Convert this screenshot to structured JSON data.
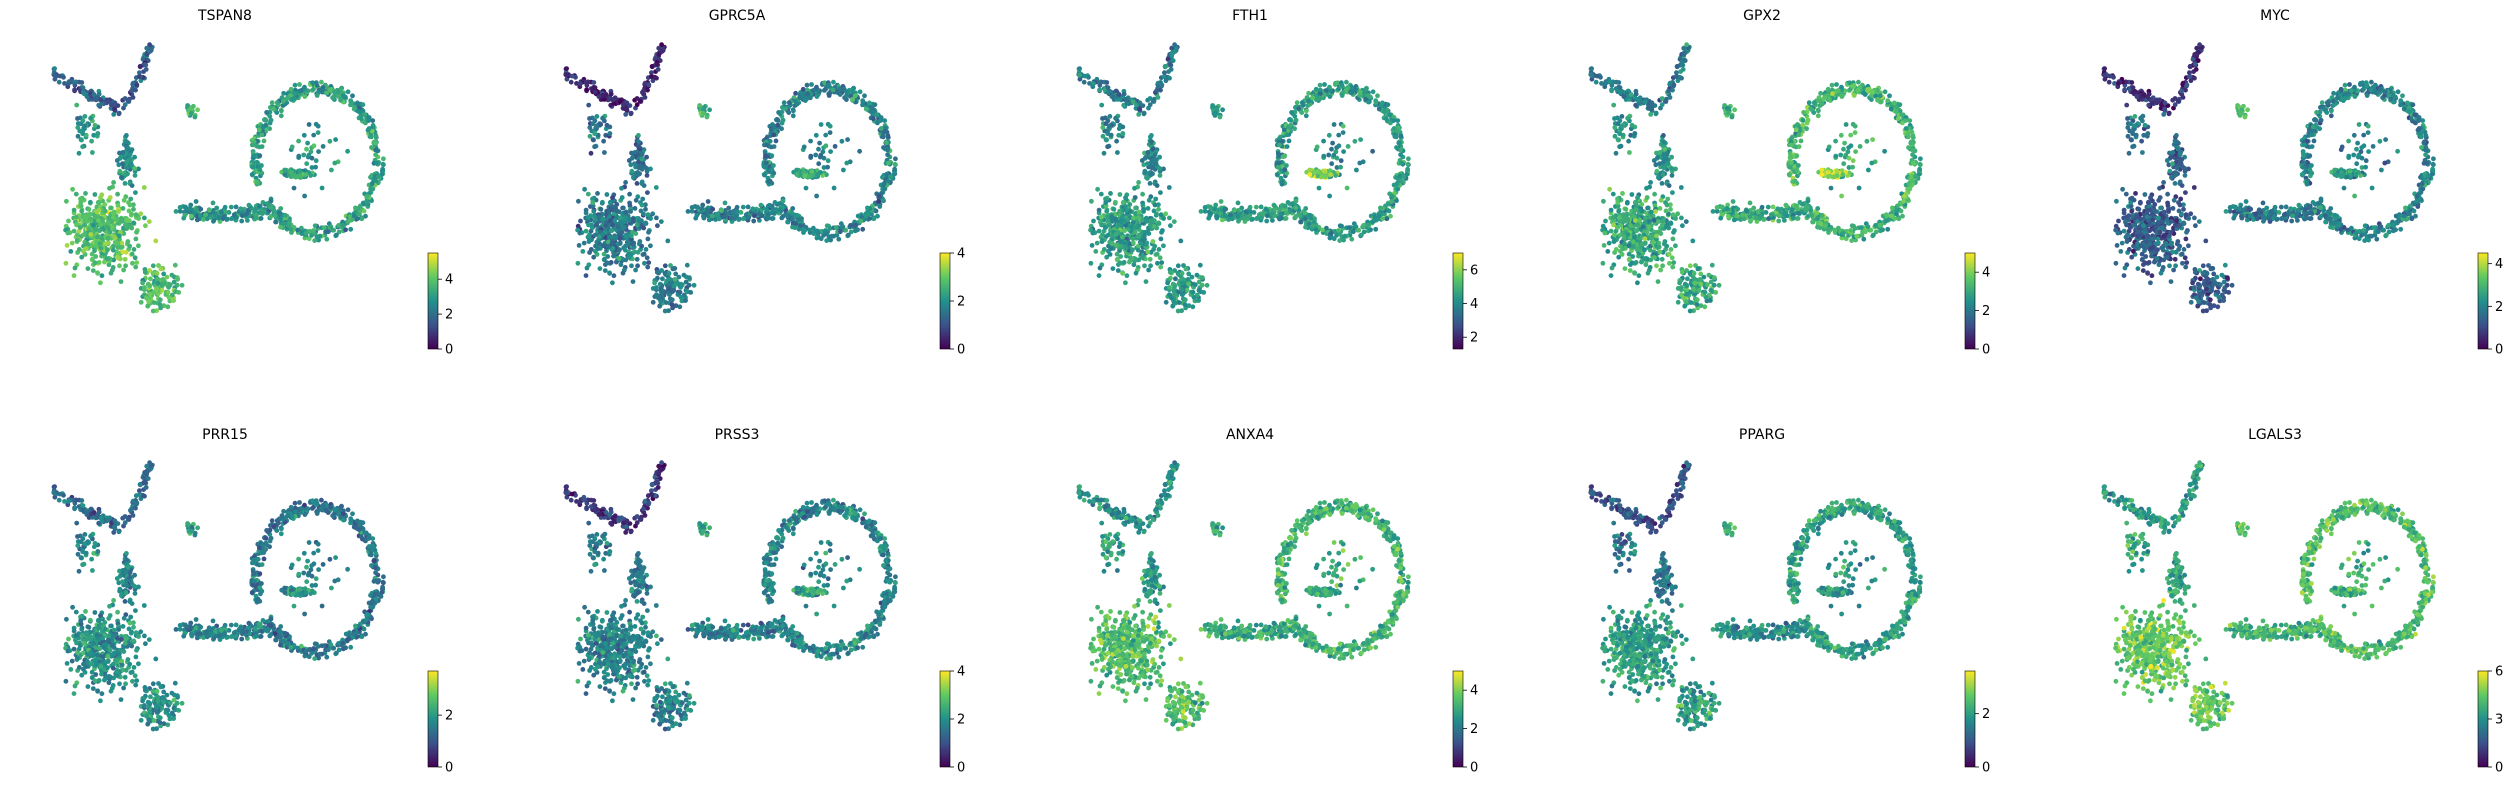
{
  "figure": {
    "colormap": "viridis",
    "colors": [
      "#440154",
      "#3b528b",
      "#21918c",
      "#5ec962",
      "#fde725"
    ],
    "background": "#ffffff"
  },
  "chart_data": [
    {
      "type": "scatter",
      "title": "TSPAN8",
      "xlabel": "",
      "ylabel": "",
      "grid": false,
      "legend": "none",
      "colorbar": {
        "ticks": [
          0,
          2,
          4
        ],
        "range": [
          0,
          5.5
        ]
      }
    },
    {
      "type": "scatter",
      "title": "GPRC5A",
      "xlabel": "",
      "ylabel": "",
      "grid": false,
      "legend": "none",
      "colorbar": {
        "ticks": [
          0,
          2,
          4
        ],
        "range": [
          0,
          4
        ]
      }
    },
    {
      "type": "scatter",
      "title": "FTH1",
      "xlabel": "",
      "ylabel": "",
      "grid": false,
      "legend": "none",
      "colorbar": {
        "ticks": [
          2,
          4,
          6
        ],
        "range": [
          1.3,
          7
        ]
      }
    },
    {
      "type": "scatter",
      "title": "GPX2",
      "xlabel": "",
      "ylabel": "",
      "grid": false,
      "legend": "none",
      "colorbar": {
        "ticks": [
          0,
          2,
          4
        ],
        "range": [
          0,
          5
        ]
      }
    },
    {
      "type": "scatter",
      "title": "MYC",
      "xlabel": "",
      "ylabel": "",
      "grid": false,
      "legend": "none",
      "colorbar": {
        "ticks": [
          0,
          2,
          4
        ],
        "range": [
          0,
          4.5
        ]
      }
    },
    {
      "type": "scatter",
      "title": "PRR15",
      "xlabel": "",
      "ylabel": "",
      "grid": false,
      "legend": "none",
      "colorbar": {
        "ticks": [
          0,
          2
        ],
        "range": [
          0,
          3.7
        ]
      }
    },
    {
      "type": "scatter",
      "title": "PRSS3",
      "xlabel": "",
      "ylabel": "",
      "grid": false,
      "legend": "none",
      "colorbar": {
        "ticks": [
          0,
          2,
          4
        ],
        "range": [
          0,
          4
        ]
      }
    },
    {
      "type": "scatter",
      "title": "ANXA4",
      "xlabel": "",
      "ylabel": "",
      "grid": false,
      "legend": "none",
      "colorbar": {
        "ticks": [
          0,
          2,
          4
        ],
        "range": [
          0,
          5
        ]
      }
    },
    {
      "type": "scatter",
      "title": "PPARG",
      "xlabel": "",
      "ylabel": "",
      "grid": false,
      "legend": "none",
      "colorbar": {
        "ticks": [
          0,
          2
        ],
        "range": [
          0,
          3.6
        ]
      }
    },
    {
      "type": "scatter",
      "title": "LGALS3",
      "xlabel": "",
      "ylabel": "",
      "grid": false,
      "legend": "none",
      "colorbar": {
        "ticks": [
          0,
          3,
          6
        ],
        "range": [
          0,
          6
        ]
      }
    }
  ]
}
